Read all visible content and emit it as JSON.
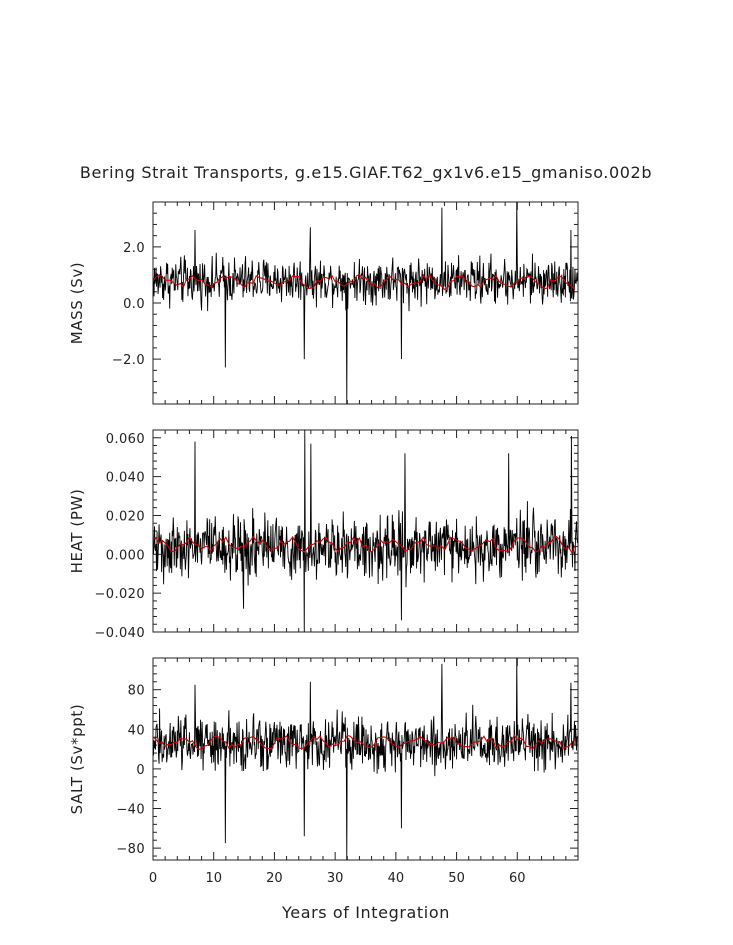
{
  "title": "Bering Strait Transports, g.e15.GIAF.T62_gx1v6.e15_gmaniso.002b",
  "chart_data": [
    {
      "type": "line",
      "ylabel": "MASS (Sv)",
      "xlabel": "",
      "xlim": [
        0,
        70
      ],
      "ylim": [
        -3.6,
        3.6
      ],
      "yticks": [
        -2.0,
        0.0,
        2.0
      ],
      "ytick_labels": [
        "−2.0",
        "0.0",
        "2.0"
      ],
      "monthly": {
        "mean": 0.8,
        "amp": 0.6,
        "spikes_up": [
          [
            6.9,
            2.6
          ],
          [
            25.9,
            2.7
          ],
          [
            47.6,
            3.4
          ],
          [
            59.9,
            3.6
          ],
          [
            68.8,
            2.6
          ]
        ],
        "spikes_down": [
          [
            11.9,
            -2.3
          ],
          [
            24.9,
            -2.0
          ],
          [
            31.9,
            -3.6
          ],
          [
            40.9,
            -2.0
          ]
        ]
      },
      "annual": {
        "mean": 0.75,
        "amp": 0.25
      },
      "series": [
        {
          "values_desc": "monthly",
          "color": "#000000"
        },
        {
          "values_desc": "annual",
          "color": "#d00000"
        }
      ]
    },
    {
      "type": "line",
      "ylabel": "HEAT (PW)",
      "xlabel": "",
      "xlim": [
        0,
        70
      ],
      "ylim": [
        -0.04,
        0.064
      ],
      "yticks": [
        -0.04,
        -0.02,
        0.0,
        0.02,
        0.04,
        0.06
      ],
      "ytick_labels": [
        "−0.040",
        "−0.020",
        "0.000",
        "0.020",
        "0.040",
        "0.060"
      ],
      "monthly": {
        "mean": 0.004,
        "amp": 0.012,
        "spikes_up": [
          [
            6.9,
            0.058
          ],
          [
            25.0,
            0.064
          ],
          [
            26.0,
            0.057
          ],
          [
            41.5,
            0.052
          ],
          [
            58.6,
            0.052
          ],
          [
            68.9,
            0.061
          ]
        ],
        "spikes_down": [
          [
            14.9,
            -0.028
          ],
          [
            24.9,
            -0.04
          ],
          [
            40.9,
            -0.034
          ]
        ]
      },
      "annual": {
        "mean": 0.005,
        "amp": 0.004
      },
      "series": [
        {
          "values_desc": "monthly",
          "color": "#000000"
        },
        {
          "values_desc": "annual",
          "color": "#d00000"
        }
      ]
    },
    {
      "type": "line",
      "ylabel": "SALT (Sv*ppt)",
      "xlabel": "Years of Integration",
      "xlim": [
        0,
        70
      ],
      "ylim": [
        -92,
        112
      ],
      "xticks": [
        0,
        10,
        20,
        30,
        40,
        50,
        60
      ],
      "xtick_labels": [
        "0",
        "10",
        "20",
        "30",
        "40",
        "50",
        "60"
      ],
      "yticks": [
        -80,
        -40,
        0,
        40,
        80
      ],
      "ytick_labels": [
        "−80",
        "−40",
        "0",
        "40",
        "80"
      ],
      "monthly": {
        "mean": 27,
        "amp": 20,
        "spikes_up": [
          [
            6.9,
            85
          ],
          [
            25.9,
            88
          ],
          [
            47.6,
            106
          ],
          [
            59.9,
            112
          ],
          [
            68.8,
            87
          ]
        ],
        "spikes_down": [
          [
            11.9,
            -75
          ],
          [
            24.9,
            -68
          ],
          [
            31.9,
            -92
          ],
          [
            40.9,
            -60
          ]
        ]
      },
      "annual": {
        "mean": 27,
        "amp": 7
      },
      "series": [
        {
          "values_desc": "monthly",
          "color": "#000000"
        },
        {
          "values_desc": "annual",
          "color": "#d00000"
        }
      ]
    }
  ]
}
